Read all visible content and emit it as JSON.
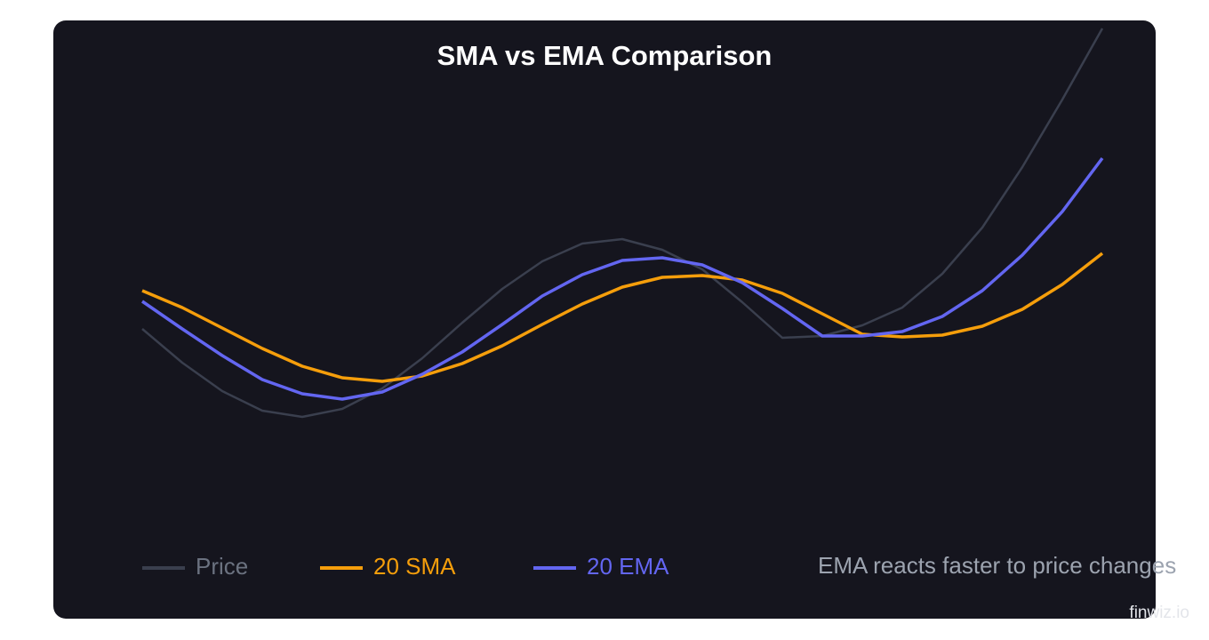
{
  "chart_data": {
    "type": "line",
    "title": "SMA vs EMA Comparison",
    "annotation": "EMA reacts faster to price changes",
    "watermark": "finwiz.io",
    "ylim": [
      0,
      100
    ],
    "grid": false,
    "series": [
      {
        "name": "Price",
        "color": "#3a3f4e",
        "values": [
          30,
          22.4,
          16,
          11.6,
          10.2,
          12,
          16.6,
          23.4,
          31.4,
          39,
          45.2,
          49.2,
          50.2,
          47.8,
          43.4,
          36,
          28,
          28.4,
          30.8,
          34.8,
          42.4,
          52.8,
          66.4,
          81.6,
          97.6
        ]
      },
      {
        "name": "20 SMA",
        "color": "#f59e0b",
        "values": [
          38.6,
          34.8,
          30.2,
          25.6,
          21.6,
          19,
          18.2,
          19.4,
          22.2,
          26.2,
          31,
          35.6,
          39.4,
          41.6,
          42,
          41,
          38,
          33.4,
          28.8,
          28.2,
          28.6,
          30.6,
          34.4,
          40,
          47
        ]
      },
      {
        "name": "20 EMA",
        "color": "#6366f1",
        "values": [
          36.2,
          30,
          24,
          18.6,
          15.4,
          14.2,
          15.8,
          19.8,
          24.8,
          31,
          37.4,
          42.2,
          45.4,
          46,
          44.4,
          40.4,
          34.6,
          28.4,
          28.4,
          29.4,
          32.8,
          38.6,
          46.6,
          56.4,
          68.4
        ]
      }
    ]
  }
}
